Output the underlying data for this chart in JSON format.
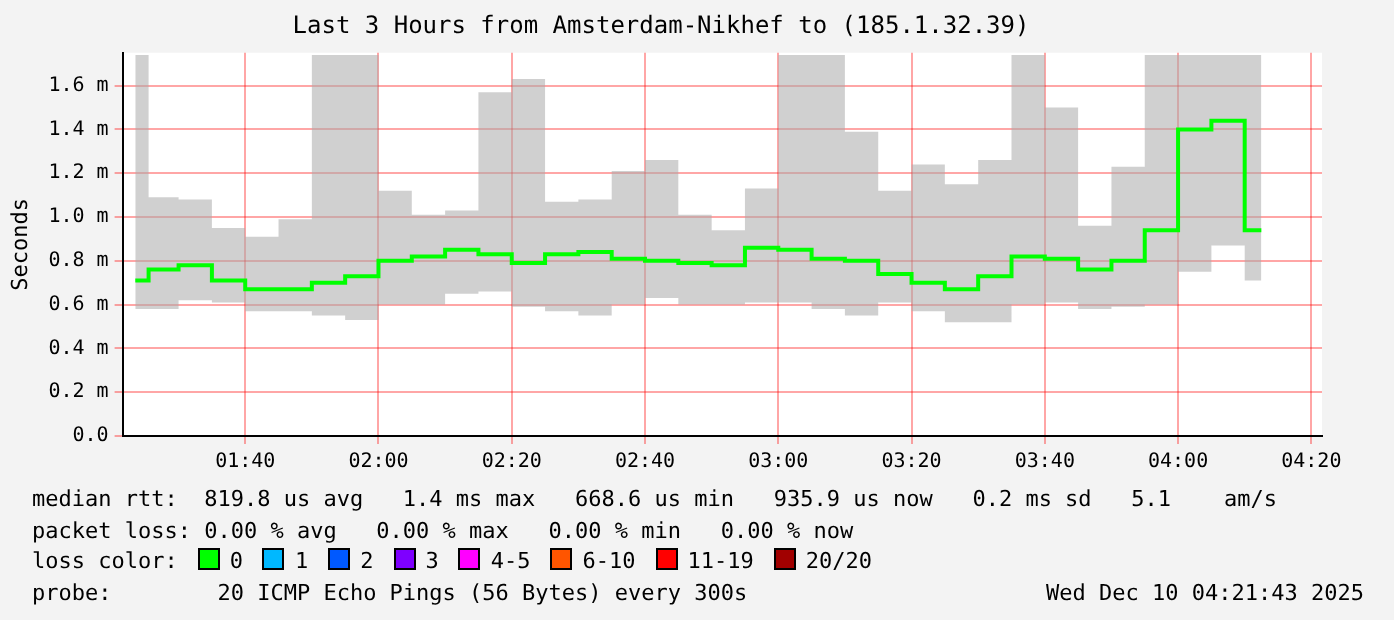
{
  "chart_data": {
    "type": "step",
    "title": "Last 3 Hours from Amsterdam-Nikhef to (185.1.32.39)",
    "ylabel": "Seconds",
    "legend_title": "loss color:",
    "legend": "bottom",
    "grid": true,
    "x": [
      1.3917,
      1.4583,
      1.5417,
      1.625,
      1.7083,
      1.7917,
      1.875,
      1.9583,
      2.0417,
      2.125,
      2.2083,
      2.2917,
      2.375,
      2.4583,
      2.5417,
      2.625,
      2.7083,
      2.7917,
      2.875,
      2.9583,
      3.0417,
      3.125,
      3.2083,
      3.2917,
      3.375,
      3.4583,
      3.5417,
      3.625,
      3.7083,
      3.7917,
      3.875,
      3.9583,
      4.0417,
      4.125,
      4.2083
    ],
    "xlim": [
      1.36,
      4.36
    ],
    "xticks": [
      {
        "value": 1.6667,
        "label": "01:40"
      },
      {
        "value": 2,
        "label": "02:00"
      },
      {
        "value": 2.3333,
        "label": "02:20"
      },
      {
        "value": 2.6667,
        "label": "02:40"
      },
      {
        "value": 3,
        "label": "03:00"
      },
      {
        "value": 3.3333,
        "label": "03:20"
      },
      {
        "value": 3.6667,
        "label": "03:40"
      },
      {
        "value": 4,
        "label": "04:00"
      },
      {
        "value": 4.3333,
        "label": "04:20"
      }
    ],
    "ylim": [
      0,
      1.75
    ],
    "yticks": [
      {
        "value": 0,
        "label": "0.0"
      },
      {
        "value": 0.2,
        "label": "0.2 m"
      },
      {
        "value": 0.4,
        "label": "0.4 m"
      },
      {
        "value": 0.6,
        "label": "0.6 m"
      },
      {
        "value": 0.8,
        "label": "0.8 m"
      },
      {
        "value": 1,
        "label": "1.0 m"
      },
      {
        "value": 1.2,
        "label": "1.2 m"
      },
      {
        "value": 1.4,
        "label": "1.4 m"
      },
      {
        "value": 1.6,
        "label": "1.6 m"
      }
    ],
    "series": [
      {
        "name": "0",
        "color": "#00ff00",
        "values": [
          0.71,
          0.76,
          0.78,
          0.71,
          0.67,
          0.67,
          0.7,
          0.73,
          0.8,
          0.82,
          0.85,
          0.83,
          0.79,
          0.83,
          0.84,
          0.81,
          0.8,
          0.79,
          0.78,
          0.86,
          0.85,
          0.81,
          0.8,
          0.74,
          0.7,
          0.67,
          0.73,
          0.82,
          0.81,
          0.76,
          0.8,
          0.94,
          1.4,
          1.44,
          0.94
        ],
        "lower": [
          0.58,
          0.58,
          0.62,
          0.61,
          0.57,
          0.57,
          0.55,
          0.53,
          0.6,
          0.6,
          0.65,
          0.66,
          0.59,
          0.57,
          0.55,
          0.6,
          0.63,
          0.6,
          0.6,
          0.61,
          0.61,
          0.58,
          0.55,
          0.61,
          0.57,
          0.52,
          0.52,
          0.6,
          0.61,
          0.58,
          0.59,
          0.6,
          0.75,
          0.87,
          0.71
        ],
        "upper": [
          1.74,
          1.09,
          1.08,
          0.95,
          0.91,
          0.99,
          1.74,
          1.74,
          1.12,
          1.01,
          1.03,
          1.57,
          1.63,
          1.07,
          1.08,
          1.21,
          1.26,
          1.01,
          0.94,
          1.13,
          1.74,
          1.74,
          1.39,
          1.12,
          1.24,
          1.15,
          1.26,
          1.74,
          1.5,
          0.96,
          1.23,
          1.74,
          1.74,
          1.74,
          1.74
        ]
      },
      {
        "name": "1",
        "color": "#00b8ff",
        "values": [
          null,
          null,
          null,
          null,
          null,
          null,
          null,
          null,
          null,
          null,
          null,
          null,
          null,
          null,
          null,
          null,
          null,
          null,
          null,
          null,
          null,
          null,
          null,
          null,
          null,
          null,
          null,
          null,
          null,
          null,
          null,
          null,
          null,
          null,
          null
        ]
      },
      {
        "name": "2",
        "color": "#0059ff",
        "values": [
          null,
          null,
          null,
          null,
          null,
          null,
          null,
          null,
          null,
          null,
          null,
          null,
          null,
          null,
          null,
          null,
          null,
          null,
          null,
          null,
          null,
          null,
          null,
          null,
          null,
          null,
          null,
          null,
          null,
          null,
          null,
          null,
          null,
          null,
          null
        ]
      },
      {
        "name": "3",
        "color": "#7e00ff",
        "values": [
          null,
          null,
          null,
          null,
          null,
          null,
          null,
          null,
          null,
          null,
          null,
          null,
          null,
          null,
          null,
          null,
          null,
          null,
          null,
          null,
          null,
          null,
          null,
          null,
          null,
          null,
          null,
          null,
          null,
          null,
          null,
          null,
          null,
          null,
          null
        ]
      },
      {
        "name": "4-5",
        "color": "#ff00ff",
        "values": [
          null,
          null,
          null,
          null,
          null,
          null,
          null,
          null,
          null,
          null,
          null,
          null,
          null,
          null,
          null,
          null,
          null,
          null,
          null,
          null,
          null,
          null,
          null,
          null,
          null,
          null,
          null,
          null,
          null,
          null,
          null,
          null,
          null,
          null,
          null
        ]
      },
      {
        "name": "6-10",
        "color": "#ff5500",
        "values": [
          null,
          null,
          null,
          null,
          null,
          null,
          null,
          null,
          null,
          null,
          null,
          null,
          null,
          null,
          null,
          null,
          null,
          null,
          null,
          null,
          null,
          null,
          null,
          null,
          null,
          null,
          null,
          null,
          null,
          null,
          null,
          null,
          null,
          null,
          null
        ]
      },
      {
        "name": "11-19",
        "color": "#ff0000",
        "values": [
          null,
          null,
          null,
          null,
          null,
          null,
          null,
          null,
          null,
          null,
          null,
          null,
          null,
          null,
          null,
          null,
          null,
          null,
          null,
          null,
          null,
          null,
          null,
          null,
          null,
          null,
          null,
          null,
          null,
          null,
          null,
          null,
          null,
          null,
          null
        ]
      },
      {
        "name": "20/20",
        "color": "#a10000",
        "values": [
          null,
          null,
          null,
          null,
          null,
          null,
          null,
          null,
          null,
          null,
          null,
          null,
          null,
          null,
          null,
          null,
          null,
          null,
          null,
          null,
          null,
          null,
          null,
          null,
          null,
          null,
          null,
          null,
          null,
          null,
          null,
          null,
          null,
          null,
          null
        ]
      }
    ],
    "annotations": [
      "median rtt:  819.8 us avg   1.4 ms max   668.6 us min   935.9 us now   0.2 ms sd   5.1    am/s",
      "packet loss: 0.00 % avg   0.00 % max   0.00 % min   0.00 % now",
      "probe:        20 ICMP Echo Pings (56 Bytes) every 300s",
      "Wed Dec 10 04:21:43 2025"
    ]
  }
}
